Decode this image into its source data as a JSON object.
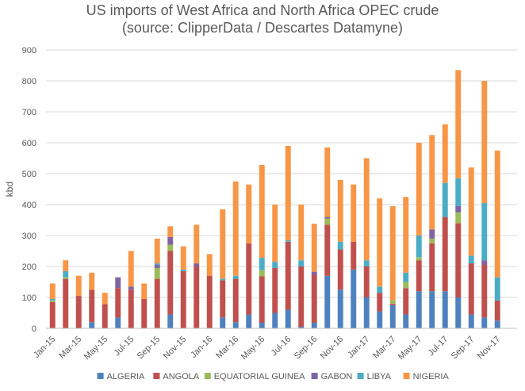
{
  "chart_data": {
    "type": "bar",
    "stacked": true,
    "title": "US imports of West Africa and North Africa OPEC crude",
    "subtitle": "(source: ClipperData / Descartes Datamyne)",
    "xlabel": "",
    "ylabel": "kbd",
    "ylim": [
      0,
      900
    ],
    "yticks": [
      0,
      100,
      200,
      300,
      400,
      500,
      600,
      700,
      800,
      900
    ],
    "grid": true,
    "legend_position": "bottom",
    "categories": [
      "Jan-15",
      "Feb-15",
      "Mar-15",
      "Apr-15",
      "May-15",
      "Jun-15",
      "Jul-15",
      "Aug-15",
      "Sep-15",
      "Oct-15",
      "Nov-15",
      "Dec-15",
      "Jan-16",
      "Feb-16",
      "Mar-16",
      "Apr-16",
      "May-16",
      "Jun-16",
      "Jul-16",
      "Aug-16",
      "Sep-16",
      "Oct-16",
      "Nov-16",
      "Dec-16",
      "Jan-17",
      "Feb-17",
      "Mar-17",
      "Apr-17",
      "May-17",
      "Jun-17",
      "Jul-17",
      "Aug-17",
      "Sep-17",
      "Oct-17",
      "Nov-17",
      "Dec-17"
    ],
    "xtick_labels": [
      "Jan-15",
      "Mar-15",
      "May-15",
      "Jul-15",
      "Sep-15",
      "Nov-15",
      "Jan-16",
      "Mar-16",
      "May-16",
      "Jul-16",
      "Sep-16",
      "Nov-16",
      "Jan-17",
      "Mar-17",
      "May-17",
      "Jul-17",
      "Sep-17",
      "Nov-17"
    ],
    "series": [
      {
        "name": "ALGERIA",
        "color": "#4e81bd",
        "values": [
          0,
          0,
          0,
          20,
          0,
          35,
          0,
          0,
          0,
          45,
          0,
          0,
          0,
          35,
          20,
          45,
          18,
          50,
          60,
          5,
          18,
          170,
          125,
          190,
          100,
          55,
          75,
          45,
          120,
          120,
          120,
          100,
          45,
          35,
          25,
          0
        ]
      },
      {
        "name": "ANGOLA",
        "color": "#c0504d",
        "values": [
          85,
          160,
          105,
          105,
          78,
          95,
          125,
          95,
          160,
          205,
          185,
          200,
          170,
          120,
          140,
          230,
          150,
          145,
          220,
          195,
          155,
          165,
          130,
          90,
          100,
          60,
          5,
          85,
          100,
          155,
          240,
          240,
          165,
          170,
          65,
          0
        ]
      },
      {
        "name": "EQUATORIAL GUINEA",
        "color": "#9bbb59",
        "values": [
          5,
          5,
          0,
          0,
          0,
          0,
          0,
          0,
          35,
          20,
          0,
          0,
          0,
          0,
          0,
          0,
          20,
          0,
          0,
          0,
          0,
          20,
          0,
          0,
          0,
          0,
          10,
          20,
          10,
          15,
          0,
          35,
          0,
          0,
          0,
          0
        ]
      },
      {
        "name": "GABON",
        "color": "#8064a2",
        "values": [
          0,
          0,
          0,
          0,
          0,
          35,
          10,
          0,
          10,
          25,
          0,
          10,
          0,
          0,
          0,
          0,
          0,
          0,
          0,
          0,
          10,
          5,
          0,
          0,
          0,
          0,
          0,
          0,
          0,
          30,
          0,
          20,
          0,
          15,
          0,
          0
        ]
      },
      {
        "name": "LIBYA",
        "color": "#4bacc6",
        "values": [
          5,
          20,
          0,
          0,
          0,
          0,
          0,
          0,
          5,
          0,
          5,
          0,
          0,
          5,
          10,
          0,
          40,
          20,
          5,
          20,
          0,
          0,
          25,
          0,
          20,
          20,
          0,
          30,
          70,
          0,
          110,
          90,
          25,
          185,
          75,
          0
        ]
      },
      {
        "name": "NIGERIA",
        "color": "#f79646",
        "values": [
          50,
          35,
          65,
          55,
          37,
          0,
          115,
          50,
          80,
          35,
          75,
          125,
          70,
          225,
          305,
          190,
          300,
          185,
          305,
          180,
          155,
          225,
          200,
          185,
          330,
          285,
          305,
          245,
          300,
          305,
          190,
          350,
          285,
          395,
          410,
          0
        ]
      }
    ]
  }
}
